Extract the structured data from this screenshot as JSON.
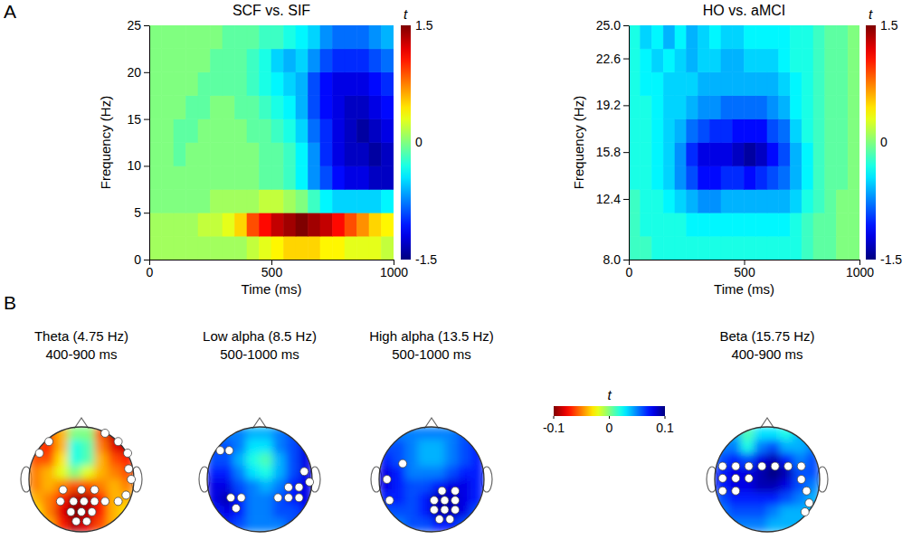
{
  "panel_labels": [
    "A",
    "B"
  ],
  "chart_data": [
    {
      "type": "heatmap",
      "title": "SCF vs. SIF",
      "x_label": "Time (ms)",
      "y_label": "Frequency (Hz)",
      "xlim": [
        0,
        1000
      ],
      "ylim": [
        0,
        25
      ],
      "xticks": [
        0,
        500,
        1000
      ],
      "yticks": [
        0,
        5,
        10,
        15,
        20,
        25
      ],
      "color": "jet",
      "colorbar": {
        "label": "t",
        "range": [
          -1.5,
          1.5
        ],
        "ticks": [
          1.5,
          0,
          -1.5
        ]
      },
      "x_edges": [
        0,
        50,
        100,
        150,
        200,
        250,
        300,
        350,
        400,
        450,
        500,
        550,
        600,
        650,
        700,
        750,
        800,
        850,
        900,
        950,
        1000
      ],
      "y_edges": [
        0,
        2.5,
        5,
        7.5,
        10,
        12.5,
        15,
        17.5,
        20,
        22.5,
        25
      ],
      "values": [
        [
          0.1,
          0.1,
          0.1,
          0.1,
          0.1,
          0.1,
          0.1,
          0.1,
          0.2,
          0.3,
          0.4,
          0.5,
          0.5,
          0.5,
          0.4,
          0.4,
          0.3,
          0.3,
          0.3,
          0.2
        ],
        [
          0.1,
          0.1,
          0.1,
          0.1,
          0.2,
          0.2,
          0.3,
          0.5,
          0.9,
          1.1,
          1.3,
          1.4,
          1.5,
          1.4,
          1.3,
          1.1,
          0.9,
          0.7,
          0.5,
          0.4
        ],
        [
          0,
          0,
          0,
          0,
          0,
          0.1,
          0.1,
          0.1,
          0.1,
          0.2,
          0.2,
          0.1,
          0,
          -0.2,
          -0.4,
          -0.5,
          -0.5,
          -0.5,
          -0.5,
          -0.4
        ],
        [
          0,
          0,
          0,
          0,
          0,
          0,
          0,
          0,
          0,
          -0.1,
          -0.1,
          -0.2,
          -0.4,
          -0.7,
          -0.9,
          -1.1,
          -1.2,
          -1.2,
          -1.3,
          -1.3
        ],
        [
          0,
          0,
          -0.1,
          0,
          0,
          0,
          0,
          0,
          0,
          -0.1,
          -0.1,
          -0.2,
          -0.4,
          -0.7,
          -1.0,
          -1.2,
          -1.3,
          -1.3,
          -1.4,
          -1.3
        ],
        [
          0,
          0,
          -0.1,
          -0.1,
          0,
          0,
          0,
          0,
          -0.1,
          -0.1,
          -0.2,
          -0.3,
          -0.5,
          -0.8,
          -1.0,
          -1.2,
          -1.3,
          -1.4,
          -1.3,
          -1.2
        ],
        [
          0,
          0,
          0,
          -0.1,
          -0.1,
          0,
          0,
          -0.1,
          -0.1,
          -0.2,
          -0.3,
          -0.4,
          -0.6,
          -0.9,
          -1.1,
          -1.2,
          -1.3,
          -1.3,
          -1.2,
          -1.1
        ],
        [
          0,
          0,
          0,
          0,
          -0.1,
          -0.1,
          -0.1,
          -0.1,
          -0.2,
          -0.3,
          -0.4,
          -0.5,
          -0.6,
          -0.9,
          -1.1,
          -1.2,
          -1.2,
          -1.2,
          -1.1,
          -1.0
        ],
        [
          0,
          0,
          0,
          0,
          0,
          -0.1,
          -0.1,
          -0.1,
          -0.2,
          -0.3,
          -0.5,
          -0.6,
          -0.5,
          -0.7,
          -0.9,
          -1.0,
          -1.0,
          -1.0,
          -0.9,
          -0.8
        ],
        [
          0,
          0,
          0,
          0,
          0,
          0,
          -0.1,
          -0.1,
          -0.1,
          -0.2,
          -0.2,
          -0.3,
          -0.4,
          -0.5,
          -0.7,
          -0.8,
          -0.8,
          -0.8,
          -0.7,
          -0.6
        ]
      ]
    },
    {
      "type": "heatmap",
      "title": "HO vs. aMCI",
      "x_label": "Time (ms)",
      "y_label": "Frequency (Hz)",
      "xlim": [
        0,
        1000
      ],
      "ylim": [
        8,
        25
      ],
      "xticks": [
        0,
        500,
        1000
      ],
      "yticks": [
        {
          "value": 8,
          "label": "8.0"
        },
        12.4,
        15.8,
        19.2,
        22.6,
        {
          "value": 25,
          "label": "25.0"
        }
      ],
      "color": "jet",
      "colorbar": {
        "label": "t",
        "range": [
          -1.5,
          1.5
        ],
        "ticks": [
          1.5,
          0,
          -1.5
        ]
      },
      "x_edges": [
        0,
        50,
        100,
        150,
        200,
        250,
        300,
        350,
        400,
        450,
        500,
        550,
        600,
        650,
        700,
        750,
        800,
        850,
        900,
        950,
        1000
      ],
      "y_edges": [
        8,
        9.7,
        11.4,
        13.1,
        14.8,
        16.5,
        18.2,
        19.9,
        21.6,
        23.3,
        25
      ],
      "values": [
        [
          -0.2,
          -0.2,
          -0.3,
          -0.3,
          -0.3,
          -0.3,
          -0.3,
          -0.3,
          -0.3,
          -0.3,
          -0.3,
          -0.3,
          -0.3,
          -0.3,
          -0.3,
          -0.2,
          -0.1,
          -0.1,
          0,
          0
        ],
        [
          -0.2,
          -0.3,
          -0.3,
          -0.3,
          -0.3,
          -0.4,
          -0.4,
          -0.4,
          -0.4,
          -0.4,
          -0.4,
          -0.4,
          -0.4,
          -0.4,
          -0.3,
          -0.2,
          -0.1,
          -0.1,
          0,
          0
        ],
        [
          -0.2,
          -0.3,
          -0.3,
          -0.4,
          -0.5,
          -0.6,
          -0.7,
          -0.7,
          -0.6,
          -0.6,
          -0.6,
          -0.6,
          -0.6,
          -0.6,
          -0.5,
          -0.3,
          -0.2,
          -0.1,
          0,
          0
        ],
        [
          -0.3,
          -0.3,
          -0.4,
          -0.5,
          -0.7,
          -0.9,
          -1.1,
          -1.1,
          -1.0,
          -1.0,
          -1.1,
          -1.0,
          -0.9,
          -0.8,
          -0.6,
          -0.4,
          -0.2,
          -0.1,
          -0.1,
          0
        ],
        [
          -0.3,
          -0.3,
          -0.4,
          -0.5,
          -0.7,
          -1.0,
          -1.2,
          -1.2,
          -1.2,
          -1.3,
          -1.4,
          -1.3,
          -1.1,
          -0.9,
          -0.6,
          -0.4,
          -0.2,
          -0.1,
          -0.1,
          0
        ],
        [
          -0.3,
          -0.3,
          -0.4,
          -0.5,
          -0.6,
          -0.8,
          -0.9,
          -1.0,
          -1.0,
          -1.1,
          -1.1,
          -1.1,
          -0.9,
          -0.8,
          -0.5,
          -0.3,
          -0.2,
          -0.1,
          -0.1,
          0
        ],
        [
          -0.3,
          -0.3,
          -0.4,
          -0.5,
          -0.5,
          -0.6,
          -0.7,
          -0.7,
          -0.8,
          -0.8,
          -0.8,
          -0.8,
          -0.7,
          -0.6,
          -0.4,
          -0.3,
          -0.2,
          -0.1,
          -0.1,
          0
        ],
        [
          -0.3,
          -0.4,
          -0.4,
          -0.5,
          -0.5,
          -0.5,
          -0.6,
          -0.6,
          -0.6,
          -0.6,
          -0.6,
          -0.6,
          -0.6,
          -0.5,
          -0.4,
          -0.3,
          -0.2,
          -0.1,
          -0.1,
          0
        ],
        [
          -0.3,
          -0.4,
          -0.5,
          -0.4,
          -0.5,
          -0.6,
          -0.5,
          -0.5,
          -0.6,
          -0.6,
          -0.5,
          -0.5,
          -0.5,
          -0.4,
          -0.3,
          -0.3,
          -0.2,
          -0.1,
          -0.1,
          0
        ],
        [
          -0.3,
          -0.5,
          -0.4,
          -0.6,
          -0.4,
          -0.6,
          -0.5,
          -0.4,
          -0.5,
          -0.5,
          -0.4,
          -0.4,
          -0.4,
          -0.4,
          -0.3,
          -0.3,
          -0.2,
          -0.1,
          -0.1,
          0
        ]
      ]
    },
    {
      "type": "topomap",
      "title": "Theta (4.75 Hz)",
      "subtitle": "400-900 ms",
      "xlim": [
        -1,
        1
      ],
      "ylim": [
        -1,
        1
      ],
      "grid": [
        [
          -0.05,
          -0.06,
          -0.04,
          0.0,
          0.0,
          -0.06,
          -0.09,
          -0.09
        ],
        [
          -0.06,
          -0.07,
          -0.04,
          0.02,
          0.01,
          -0.05,
          -0.08,
          -0.09
        ],
        [
          -0.06,
          -0.06,
          -0.03,
          0.02,
          0.01,
          -0.04,
          -0.06,
          -0.07
        ],
        [
          -0.05,
          -0.04,
          -0.02,
          0.0,
          -0.02,
          -0.04,
          -0.05,
          -0.06
        ],
        [
          -0.05,
          -0.04,
          -0.05,
          -0.06,
          -0.06,
          -0.05,
          -0.04,
          -0.05
        ],
        [
          -0.04,
          -0.05,
          -0.07,
          -0.09,
          -0.09,
          -0.07,
          -0.04,
          -0.04
        ],
        [
          -0.03,
          -0.05,
          -0.08,
          -0.1,
          -0.09,
          -0.07,
          -0.04,
          -0.03
        ],
        [
          -0.03,
          -0.04,
          -0.07,
          -0.09,
          -0.08,
          -0.06,
          -0.04,
          -0.03
        ]
      ],
      "electrodes": {
        "x": [
          0.45,
          0.7,
          0.88,
          -0.62,
          -0.8,
          0.95,
          0.9,
          0.85,
          -0.35,
          0.0,
          0.25,
          -0.4,
          -0.15,
          0.05,
          0.25,
          0.45,
          0.7,
          -0.2,
          0.0,
          0.2,
          -0.1,
          0.1
        ],
        "y": [
          0.88,
          0.72,
          0.5,
          0.72,
          0.5,
          0.0,
          0.2,
          -0.3,
          -0.2,
          -0.2,
          -0.2,
          -0.42,
          -0.42,
          -0.42,
          -0.42,
          -0.42,
          -0.42,
          -0.62,
          -0.62,
          -0.62,
          -0.8,
          -0.8
        ]
      }
    },
    {
      "type": "topomap",
      "title": "Low alpha (8.5 Hz)",
      "subtitle": "500-1000 ms",
      "xlim": [
        -1,
        1
      ],
      "ylim": [
        -1,
        1
      ],
      "grid": [
        [
          0.05,
          0.05,
          0.05,
          0.04,
          0.04,
          0.05,
          0.06,
          0.07
        ],
        [
          0.06,
          0.06,
          0.05,
          0.03,
          0.03,
          0.05,
          0.06,
          0.08
        ],
        [
          0.06,
          0.06,
          0.04,
          0.02,
          0.01,
          0.04,
          0.06,
          0.08
        ],
        [
          0.07,
          0.07,
          0.05,
          0.03,
          0.02,
          0.04,
          0.06,
          0.08
        ],
        [
          0.08,
          0.08,
          0.06,
          0.05,
          0.04,
          0.05,
          0.07,
          0.08
        ],
        [
          0.08,
          0.09,
          0.07,
          0.05,
          0.05,
          0.06,
          0.07,
          0.08
        ],
        [
          0.07,
          0.08,
          0.07,
          0.05,
          0.05,
          0.06,
          0.06,
          0.07
        ],
        [
          0.06,
          0.07,
          0.06,
          0.05,
          0.05,
          0.05,
          0.06,
          0.06
        ]
      ],
      "electrodes": {
        "x": [
          -0.75,
          -0.58,
          -0.55,
          -0.35,
          -0.45,
          0.85,
          0.95,
          0.55,
          0.75,
          0.35,
          0.55,
          0.75
        ],
        "y": [
          0.55,
          0.55,
          -0.35,
          -0.35,
          -0.55,
          0.15,
          -0.05,
          -0.15,
          -0.15,
          -0.35,
          -0.35,
          -0.35
        ]
      }
    },
    {
      "type": "topomap",
      "title": "High alpha (13.5 Hz)",
      "subtitle": "500-1000 ms",
      "xlim": [
        -1,
        1
      ],
      "ylim": [
        -1,
        1
      ],
      "grid": [
        [
          0.05,
          0.05,
          0.05,
          0.05,
          0.05,
          0.05,
          0.06,
          0.06
        ],
        [
          0.06,
          0.06,
          0.05,
          0.04,
          0.04,
          0.05,
          0.06,
          0.07
        ],
        [
          0.07,
          0.06,
          0.05,
          0.04,
          0.04,
          0.05,
          0.06,
          0.07
        ],
        [
          0.08,
          0.07,
          0.05,
          0.05,
          0.05,
          0.06,
          0.07,
          0.07
        ],
        [
          0.08,
          0.07,
          0.06,
          0.06,
          0.07,
          0.08,
          0.08,
          0.07
        ],
        [
          0.07,
          0.07,
          0.06,
          0.07,
          0.09,
          0.09,
          0.08,
          0.07
        ],
        [
          0.06,
          0.06,
          0.06,
          0.07,
          0.09,
          0.09,
          0.08,
          0.06
        ],
        [
          0.05,
          0.05,
          0.06,
          0.06,
          0.07,
          0.07,
          0.06,
          0.05
        ]
      ],
      "electrodes": {
        "x": [
          -0.55,
          -0.85,
          -0.8,
          0.2,
          0.45,
          0.05,
          0.25,
          0.45,
          0.05,
          0.25,
          0.45,
          0.15,
          0.35
        ],
        "y": [
          0.3,
          0.0,
          -0.4,
          -0.22,
          -0.22,
          -0.4,
          -0.4,
          -0.4,
          -0.58,
          -0.58,
          -0.58,
          -0.76,
          -0.76
        ]
      }
    },
    {
      "type": "topomap",
      "title": "Beta (15.75 Hz)",
      "subtitle": "400-900 ms",
      "xlim": [
        -1,
        1
      ],
      "ylim": [
        -1,
        1
      ],
      "grid": [
        [
          0.04,
          0.04,
          0.01,
          0.03,
          0.03,
          0.02,
          0.04,
          0.04
        ],
        [
          0.05,
          0.05,
          0.02,
          0.05,
          0.06,
          0.04,
          0.04,
          0.05
        ],
        [
          0.06,
          0.07,
          0.06,
          0.08,
          0.09,
          0.07,
          0.05,
          0.06
        ],
        [
          0.07,
          0.08,
          0.08,
          0.09,
          0.1,
          0.09,
          0.06,
          0.06
        ],
        [
          0.07,
          0.08,
          0.08,
          0.09,
          0.09,
          0.08,
          0.06,
          0.05
        ],
        [
          0.06,
          0.07,
          0.07,
          0.07,
          0.07,
          0.06,
          0.05,
          0.04
        ],
        [
          0.05,
          0.06,
          0.06,
          0.06,
          0.05,
          0.04,
          0.04,
          0.04
        ],
        [
          0.05,
          0.05,
          0.05,
          0.05,
          0.04,
          0.04,
          0.04,
          0.04
        ]
      ],
      "electrodes": {
        "x": [
          -0.85,
          -0.6,
          -0.35,
          -0.1,
          0.15,
          0.4,
          0.65,
          -0.85,
          -0.6,
          -0.35,
          -0.85,
          -0.6,
          0.65,
          0.75,
          0.8,
          0.72
        ],
        "y": [
          0.25,
          0.25,
          0.25,
          0.25,
          0.25,
          0.25,
          0.25,
          0.02,
          0.02,
          0.02,
          -0.22,
          -0.22,
          0.0,
          -0.22,
          -0.45,
          -0.62
        ]
      }
    },
    {
      "type": "colorbar",
      "label": "t",
      "range": [
        -0.1,
        0.1
      ],
      "ticks": [
        -0.1,
        0,
        0.1
      ],
      "color": "jet_r"
    }
  ]
}
